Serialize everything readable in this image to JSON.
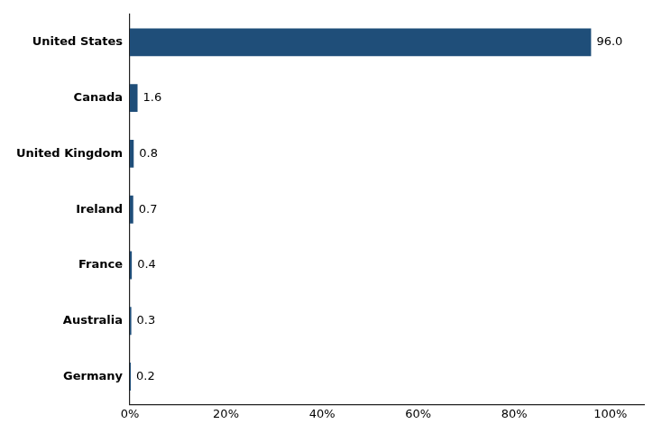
{
  "chart_data": {
    "type": "bar",
    "orientation": "horizontal",
    "categories": [
      "Germany",
      "Australia",
      "France",
      "Ireland",
      "United Kingdom",
      "Canada",
      "United States"
    ],
    "values": [
      0.2,
      0.3,
      0.4,
      0.7,
      0.8,
      1.6,
      96.0
    ],
    "value_labels": [
      "0.2",
      "0.3",
      "0.4",
      "0.7",
      "0.8",
      "1.6",
      "96.0"
    ],
    "data_labels": true,
    "color": "#1f4e79",
    "xlim": [
      0,
      107
    ],
    "xticks": [
      {
        "value": 0,
        "label": "0%"
      },
      {
        "value": 20,
        "label": "20%"
      },
      {
        "value": 40,
        "label": "40%"
      },
      {
        "value": 60,
        "label": "60%"
      },
      {
        "value": 80,
        "label": "80%"
      },
      {
        "value": 100,
        "label": "100%"
      }
    ],
    "grid": false
  }
}
